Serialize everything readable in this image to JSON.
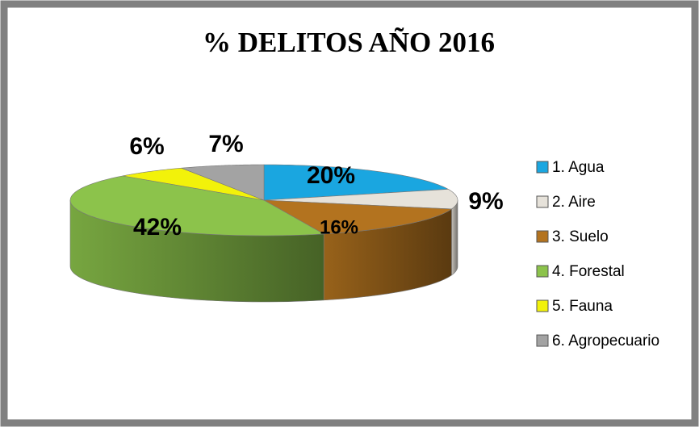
{
  "chart_data": {
    "type": "pie",
    "title": "% DELITOS AÑO 2016",
    "categories": [
      "1. Agua",
      "2. Aire",
      "3. Suelo",
      "4. Forestal",
      "5. Fauna",
      "6. Agropecuario"
    ],
    "values": [
      20,
      9,
      16,
      42,
      6,
      7
    ],
    "value_labels": [
      "20%",
      "9%",
      "16%",
      "42%",
      "6%",
      "7%"
    ],
    "colors": [
      "#1aa6e0",
      "#e6e2da",
      "#b3731f",
      "#8cc34b",
      "#f2f20a",
      "#a3a3a3"
    ],
    "legend": "right"
  }
}
